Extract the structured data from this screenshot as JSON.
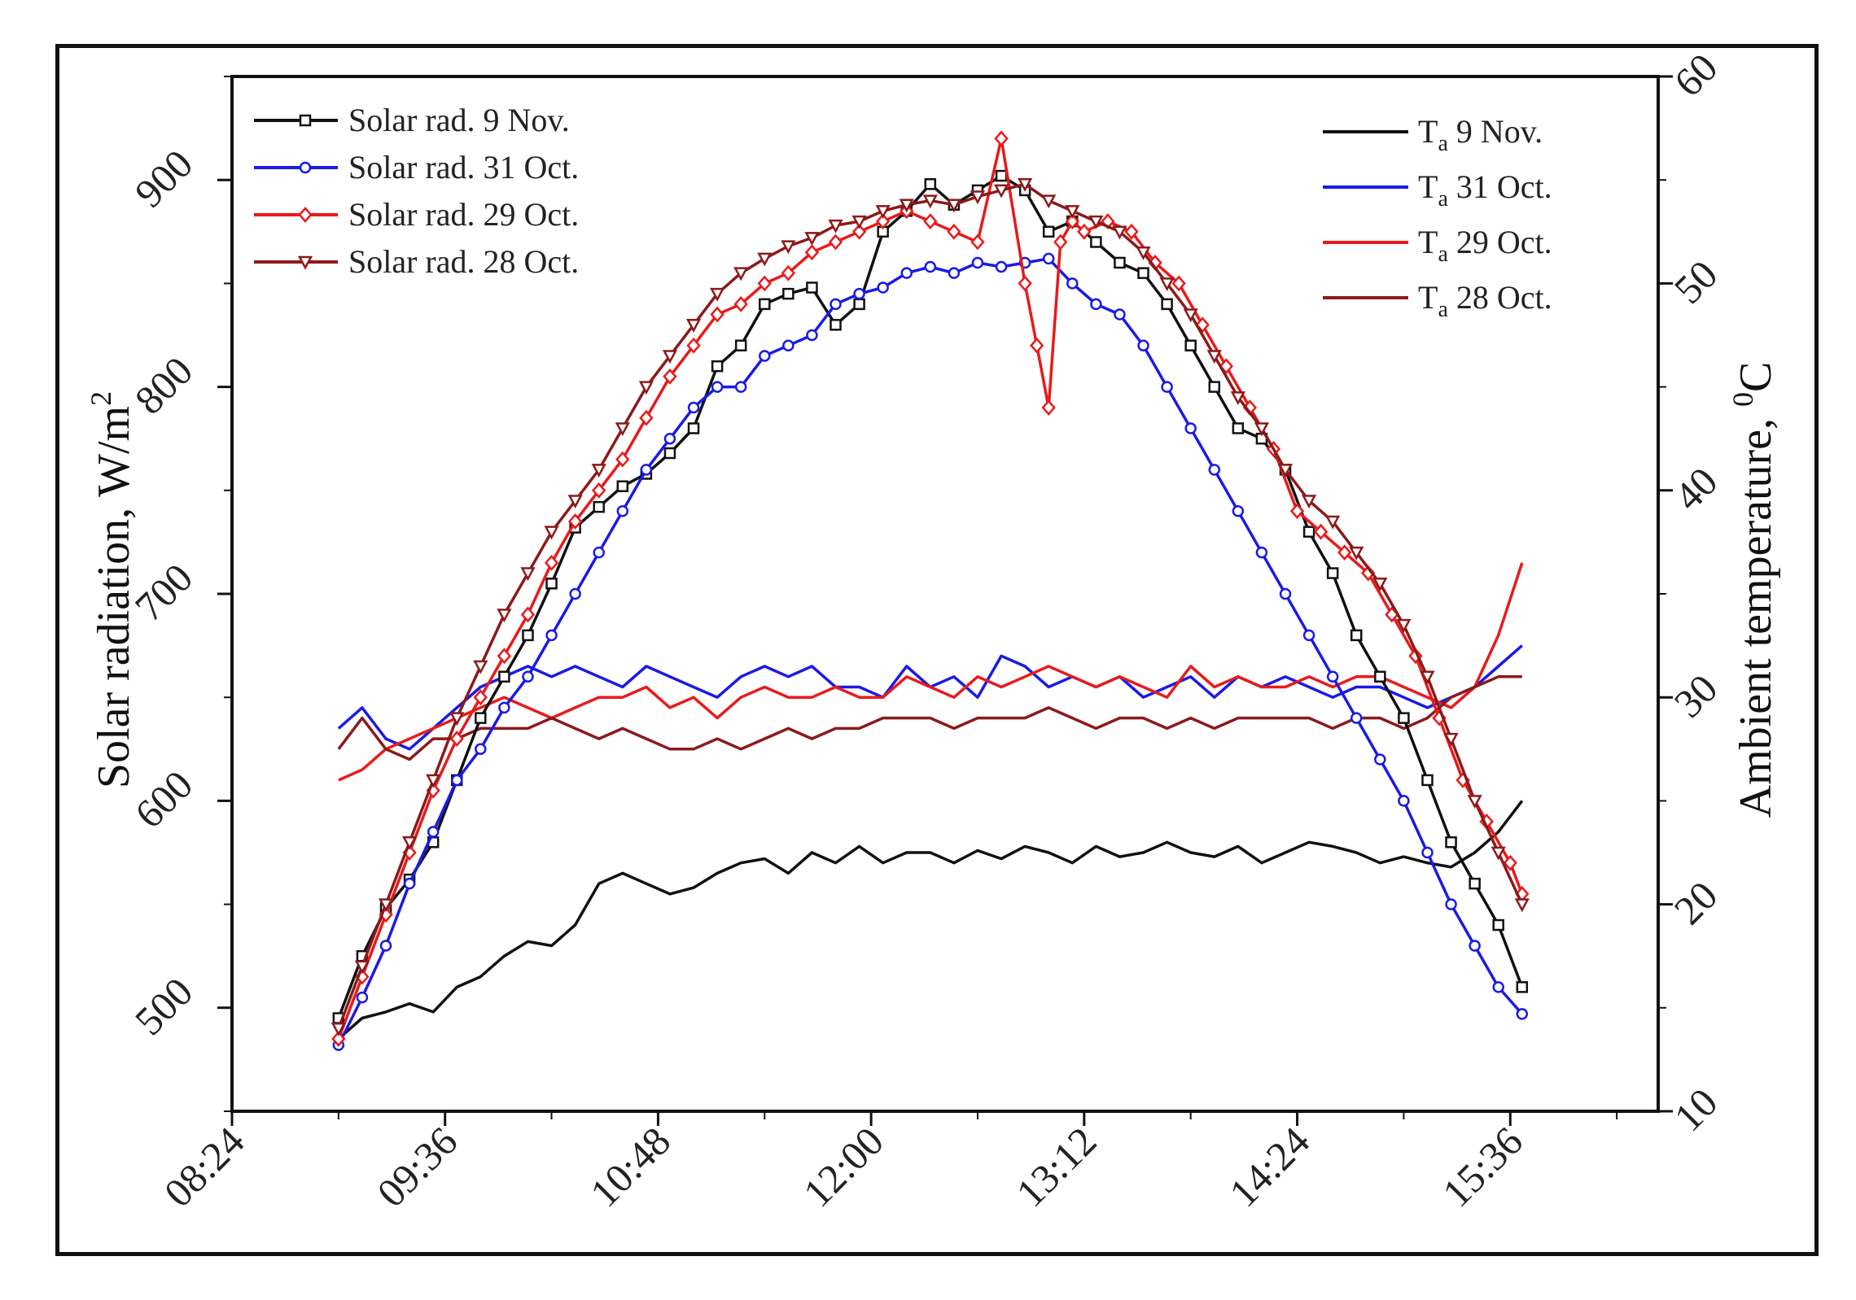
{
  "chart_data": {
    "type": "line",
    "x_unit": "time (hh:mm)",
    "x_ticks": [
      "08:24",
      "09:36",
      "10:48",
      "12:00",
      "13:12",
      "14:24",
      "15:36"
    ],
    "x_tick_minutes": [
      504,
      576,
      648,
      720,
      792,
      864,
      936
    ],
    "xlim_minutes": [
      504,
      986
    ],
    "ylabel_left": "Solar radiation, W/m",
    "ylabel_left_sup": "2",
    "ylim_left": [
      450,
      950
    ],
    "yticks_left": [
      500,
      600,
      700,
      800,
      900
    ],
    "ylabel_right": "Ambient temperature, ",
    "ylabel_right_sup": "0",
    "ylabel_right_unit": "C",
    "ylim_right": [
      10,
      60
    ],
    "yticks_right": [
      10,
      20,
      30,
      40,
      50,
      60
    ],
    "legend_left": "top-left",
    "legend_right": "top-right",
    "series": [
      {
        "name": "Solar rad. 9 Nov.",
        "axis": "left",
        "color": "#111111",
        "marker": "square",
        "x": [
          540,
          548,
          556,
          564,
          572,
          580,
          588,
          596,
          604,
          612,
          620,
          628,
          636,
          644,
          652,
          660,
          668,
          676,
          684,
          692,
          700,
          708,
          716,
          724,
          732,
          740,
          748,
          756,
          764,
          772,
          780,
          788,
          796,
          804,
          812,
          820,
          828,
          836,
          844,
          852,
          860,
          868,
          876,
          884,
          892,
          900,
          908,
          916,
          924,
          932,
          940
        ],
        "values": [
          495,
          525,
          548,
          562,
          580,
          610,
          640,
          660,
          680,
          705,
          732,
          742,
          752,
          758,
          768,
          780,
          810,
          820,
          840,
          845,
          848,
          830,
          840,
          875,
          885,
          898,
          888,
          895,
          902,
          895,
          875,
          880,
          870,
          860,
          855,
          840,
          820,
          800,
          780,
          775,
          760,
          730,
          710,
          680,
          660,
          640,
          610,
          580,
          560,
          540,
          510
        ]
      },
      {
        "name": "Solar rad. 31 Oct.",
        "axis": "left",
        "color": "#1a1ae6",
        "marker": "circle",
        "x": [
          540,
          548,
          556,
          564,
          572,
          580,
          588,
          596,
          604,
          612,
          620,
          628,
          636,
          644,
          652,
          660,
          668,
          676,
          684,
          692,
          700,
          708,
          716,
          724,
          732,
          740,
          748,
          756,
          764,
          772,
          780,
          788,
          796,
          804,
          812,
          820,
          828,
          836,
          844,
          852,
          860,
          868,
          876,
          884,
          892,
          900,
          908,
          916,
          924,
          932,
          940
        ],
        "values": [
          482,
          505,
          530,
          560,
          585,
          610,
          625,
          645,
          660,
          680,
          700,
          720,
          740,
          760,
          775,
          790,
          800,
          800,
          815,
          820,
          825,
          840,
          845,
          848,
          855,
          858,
          855,
          860,
          858,
          860,
          862,
          850,
          840,
          835,
          820,
          800,
          780,
          760,
          740,
          720,
          700,
          680,
          660,
          640,
          620,
          600,
          575,
          550,
          530,
          510,
          497
        ]
      },
      {
        "name": "Solar rad. 29 Oct.",
        "axis": "left",
        "color": "#e81a1a",
        "marker": "diamond",
        "x": [
          540,
          548,
          556,
          564,
          572,
          580,
          588,
          596,
          604,
          612,
          620,
          628,
          636,
          644,
          652,
          660,
          668,
          676,
          684,
          692,
          700,
          708,
          716,
          724,
          732,
          740,
          748,
          756,
          764,
          772,
          776,
          780,
          784,
          788,
          792,
          800,
          808,
          816,
          824,
          832,
          840,
          848,
          856,
          864,
          872,
          880,
          888,
          896,
          904,
          912,
          920,
          928,
          936,
          940
        ],
        "values": [
          485,
          515,
          545,
          575,
          605,
          630,
          650,
          670,
          690,
          715,
          735,
          750,
          765,
          785,
          805,
          820,
          835,
          840,
          850,
          855,
          865,
          870,
          875,
          880,
          885,
          880,
          875,
          870,
          920,
          850,
          820,
          790,
          870,
          880,
          875,
          880,
          875,
          860,
          850,
          830,
          810,
          790,
          770,
          740,
          730,
          720,
          710,
          690,
          670,
          640,
          610,
          590,
          570,
          555
        ]
      },
      {
        "name": "Solar rad. 28 Oct.",
        "axis": "left",
        "color": "#8b1a1a",
        "marker": "triangle-down",
        "x": [
          540,
          548,
          556,
          564,
          572,
          580,
          588,
          596,
          604,
          612,
          620,
          628,
          636,
          644,
          652,
          660,
          668,
          676,
          684,
          692,
          700,
          708,
          716,
          724,
          732,
          740,
          748,
          756,
          764,
          772,
          780,
          788,
          796,
          804,
          812,
          820,
          828,
          836,
          844,
          852,
          860,
          868,
          876,
          884,
          892,
          900,
          908,
          916,
          924,
          932,
          940
        ],
        "values": [
          490,
          520,
          550,
          580,
          610,
          640,
          665,
          690,
          710,
          730,
          745,
          760,
          780,
          800,
          815,
          830,
          845,
          855,
          862,
          868,
          872,
          878,
          880,
          885,
          888,
          890,
          888,
          892,
          895,
          898,
          890,
          885,
          880,
          875,
          865,
          850,
          835,
          815,
          795,
          780,
          760,
          745,
          735,
          720,
          705,
          685,
          660,
          630,
          600,
          575,
          550
        ]
      },
      {
        "name": "T",
        "sub": "a",
        "suffix": " 9 Nov.",
        "axis": "right",
        "color": "#111111",
        "marker": "none",
        "x": [
          540,
          548,
          556,
          564,
          572,
          580,
          588,
          596,
          604,
          612,
          620,
          628,
          636,
          644,
          652,
          660,
          668,
          676,
          684,
          692,
          700,
          708,
          716,
          724,
          732,
          740,
          748,
          756,
          764,
          772,
          780,
          788,
          796,
          804,
          812,
          820,
          828,
          836,
          844,
          852,
          860,
          868,
          876,
          884,
          892,
          900,
          908,
          916,
          924,
          932,
          940
        ],
        "values": [
          13.5,
          14.5,
          14.8,
          15.2,
          14.8,
          16.0,
          16.5,
          17.5,
          18.2,
          18.0,
          19.0,
          21.0,
          21.5,
          21.0,
          20.5,
          20.8,
          21.5,
          22.0,
          22.2,
          21.5,
          22.5,
          22.0,
          22.8,
          22.0,
          22.5,
          22.5,
          22.0,
          22.6,
          22.2,
          22.8,
          22.5,
          22.0,
          22.8,
          22.3,
          22.5,
          23.0,
          22.5,
          22.3,
          22.8,
          22.0,
          22.5,
          23.0,
          22.8,
          22.5,
          22.0,
          22.3,
          22.0,
          21.8,
          22.5,
          23.5,
          25.0
        ]
      },
      {
        "name": "T",
        "sub": "a",
        "suffix": " 31 Oct.",
        "axis": "right",
        "color": "#1a1ae6",
        "marker": "none",
        "x": [
          540,
          548,
          556,
          564,
          572,
          580,
          588,
          596,
          604,
          612,
          620,
          628,
          636,
          644,
          652,
          660,
          668,
          676,
          684,
          692,
          700,
          708,
          716,
          724,
          732,
          740,
          748,
          756,
          764,
          772,
          780,
          788,
          796,
          804,
          812,
          820,
          828,
          836,
          844,
          852,
          860,
          868,
          876,
          884,
          892,
          900,
          908,
          916,
          924,
          932,
          940
        ],
        "values": [
          28.5,
          29.5,
          28.0,
          27.5,
          28.5,
          29.5,
          30.5,
          31.0,
          31.5,
          31.0,
          31.5,
          31.0,
          30.5,
          31.5,
          31.0,
          30.5,
          30.0,
          31.0,
          31.5,
          31.0,
          31.5,
          30.5,
          30.5,
          30.0,
          31.5,
          30.5,
          31.0,
          30.0,
          32.0,
          31.5,
          30.5,
          31.0,
          30.5,
          31.0,
          30.0,
          30.5,
          31.0,
          30.0,
          31.0,
          30.5,
          31.0,
          30.5,
          30.0,
          30.5,
          30.5,
          30.0,
          29.5,
          30.0,
          30.5,
          31.5,
          32.5
        ]
      },
      {
        "name": "T",
        "sub": "a",
        "suffix": " 29 Oct.",
        "axis": "right",
        "color": "#e81a1a",
        "marker": "none",
        "x": [
          540,
          548,
          556,
          564,
          572,
          580,
          588,
          596,
          604,
          612,
          620,
          628,
          636,
          644,
          652,
          660,
          668,
          676,
          684,
          692,
          700,
          708,
          716,
          724,
          732,
          740,
          748,
          756,
          764,
          772,
          780,
          788,
          796,
          804,
          812,
          820,
          828,
          836,
          844,
          852,
          860,
          868,
          876,
          884,
          892,
          900,
          908,
          916,
          924,
          932,
          940
        ],
        "values": [
          26.0,
          26.5,
          27.5,
          28.0,
          28.5,
          29.0,
          29.5,
          30.0,
          29.5,
          29.0,
          29.5,
          30.0,
          30.0,
          30.5,
          29.5,
          30.0,
          29.0,
          30.0,
          30.5,
          30.0,
          30.0,
          30.5,
          30.0,
          30.0,
          31.0,
          30.5,
          30.0,
          31.0,
          30.5,
          31.0,
          31.5,
          31.0,
          30.5,
          31.0,
          30.5,
          30.0,
          31.5,
          30.5,
          31.0,
          30.5,
          30.5,
          31.0,
          30.5,
          31.0,
          31.0,
          30.5,
          30.0,
          29.5,
          30.5,
          33.0,
          36.5
        ]
      },
      {
        "name": "T",
        "sub": "a",
        "suffix": " 28 Oct.",
        "axis": "right",
        "color": "#8b1a1a",
        "marker": "none",
        "x": [
          540,
          548,
          556,
          564,
          572,
          580,
          588,
          596,
          604,
          612,
          620,
          628,
          636,
          644,
          652,
          660,
          668,
          676,
          684,
          692,
          700,
          708,
          716,
          724,
          732,
          740,
          748,
          756,
          764,
          772,
          780,
          788,
          796,
          804,
          812,
          820,
          828,
          836,
          844,
          852,
          860,
          868,
          876,
          884,
          892,
          900,
          908,
          916,
          924,
          932,
          940
        ],
        "values": [
          27.5,
          29.0,
          27.5,
          27.0,
          28.0,
          28.0,
          28.5,
          28.5,
          28.5,
          29.0,
          28.5,
          28.0,
          28.5,
          28.0,
          27.5,
          27.5,
          28.0,
          27.5,
          28.0,
          28.5,
          28.0,
          28.5,
          28.5,
          29.0,
          29.0,
          29.0,
          28.5,
          29.0,
          29.0,
          29.0,
          29.5,
          29.0,
          28.5,
          29.0,
          29.0,
          28.5,
          29.0,
          28.5,
          29.0,
          29.0,
          29.0,
          29.0,
          28.5,
          29.0,
          29.0,
          28.5,
          29.0,
          30.0,
          30.5,
          31.0,
          31.0
        ]
      }
    ]
  }
}
